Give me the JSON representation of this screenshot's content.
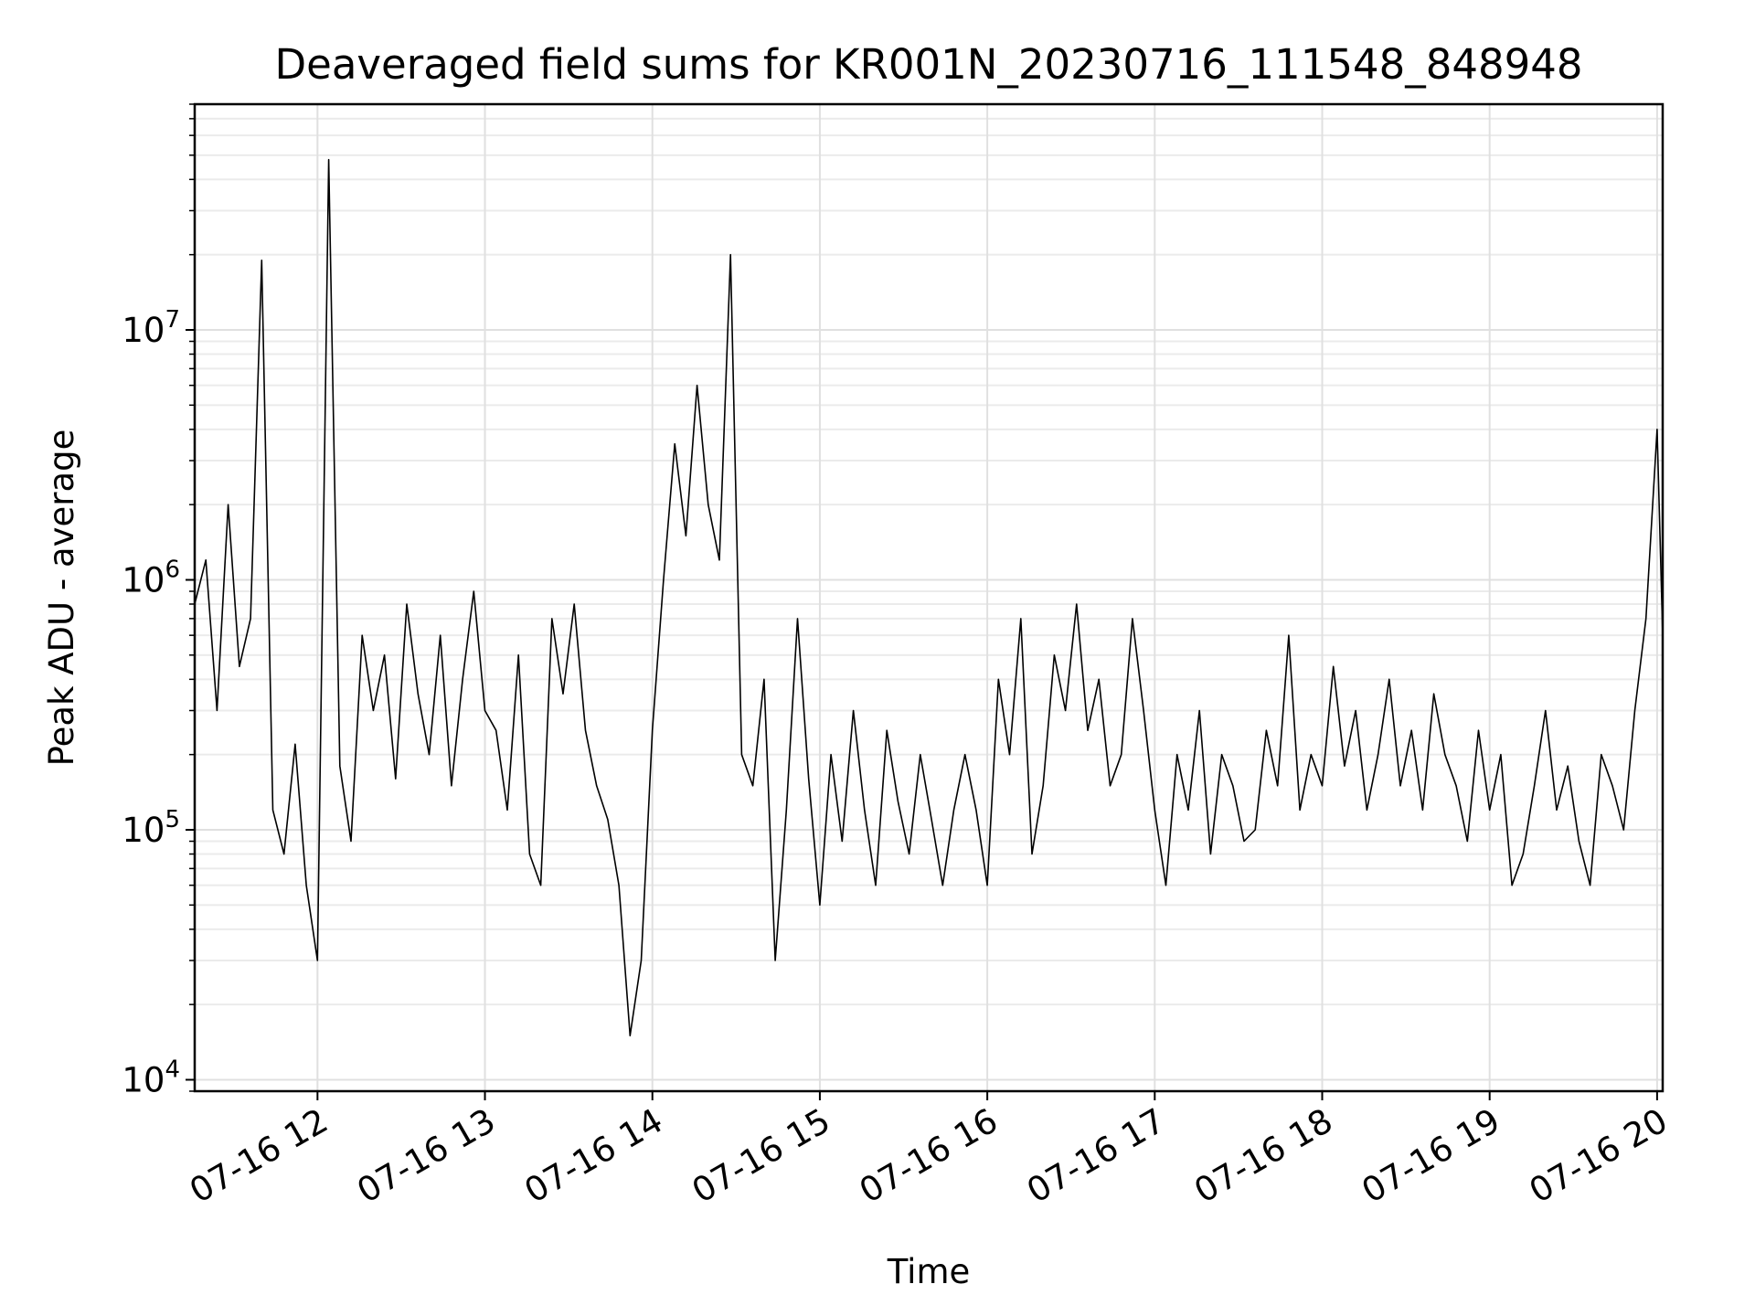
{
  "chart_data": {
    "type": "line",
    "title": "Deaveraged field sums for KR001N_20230716_111548_848948",
    "xlabel": "Time",
    "ylabel": "Peak ADU - average",
    "yscale": "log",
    "xlim": [
      "2023-07-16 11:16",
      "2023-07-16 20:02"
    ],
    "ylim": [
      9000,
      80000000
    ],
    "grid": true,
    "x_ticks": [
      "07-16 12",
      "07-16 13",
      "07-16 14",
      "07-16 15",
      "07-16 16",
      "07-16 17",
      "07-16 18",
      "07-16 19",
      "07-16 20"
    ],
    "y_ticks": [
      {
        "base": "10",
        "exp": "4",
        "value": 10000
      },
      {
        "base": "10",
        "exp": "5",
        "value": 100000
      },
      {
        "base": "10",
        "exp": "6",
        "value": 1000000
      },
      {
        "base": "10",
        "exp": "7",
        "value": 10000000
      }
    ],
    "series": [
      {
        "color": "#000000",
        "x": [
          "2023-07-16 11:16",
          "2023-07-16 11:20",
          "2023-07-16 11:24",
          "2023-07-16 11:28",
          "2023-07-16 11:32",
          "2023-07-16 11:36",
          "2023-07-16 11:40",
          "2023-07-16 11:44",
          "2023-07-16 11:48",
          "2023-07-16 11:52",
          "2023-07-16 11:56",
          "2023-07-16 12:00",
          "2023-07-16 12:04",
          "2023-07-16 12:08",
          "2023-07-16 12:12",
          "2023-07-16 12:16",
          "2023-07-16 12:20",
          "2023-07-16 12:24",
          "2023-07-16 12:28",
          "2023-07-16 12:32",
          "2023-07-16 12:36",
          "2023-07-16 12:40",
          "2023-07-16 12:44",
          "2023-07-16 12:48",
          "2023-07-16 12:52",
          "2023-07-16 12:56",
          "2023-07-16 13:00",
          "2023-07-16 13:04",
          "2023-07-16 13:08",
          "2023-07-16 13:12",
          "2023-07-16 13:16",
          "2023-07-16 13:20",
          "2023-07-16 13:24",
          "2023-07-16 13:28",
          "2023-07-16 13:32",
          "2023-07-16 13:36",
          "2023-07-16 13:40",
          "2023-07-16 13:44",
          "2023-07-16 13:48",
          "2023-07-16 13:52",
          "2023-07-16 13:56",
          "2023-07-16 14:00",
          "2023-07-16 14:04",
          "2023-07-16 14:08",
          "2023-07-16 14:12",
          "2023-07-16 14:16",
          "2023-07-16 14:20",
          "2023-07-16 14:24",
          "2023-07-16 14:28",
          "2023-07-16 14:32",
          "2023-07-16 14:36",
          "2023-07-16 14:40",
          "2023-07-16 14:44",
          "2023-07-16 14:48",
          "2023-07-16 14:52",
          "2023-07-16 14:56",
          "2023-07-16 15:00",
          "2023-07-16 15:04",
          "2023-07-16 15:08",
          "2023-07-16 15:12",
          "2023-07-16 15:16",
          "2023-07-16 15:20",
          "2023-07-16 15:24",
          "2023-07-16 15:28",
          "2023-07-16 15:32",
          "2023-07-16 15:36",
          "2023-07-16 15:40",
          "2023-07-16 15:44",
          "2023-07-16 15:48",
          "2023-07-16 15:52",
          "2023-07-16 15:56",
          "2023-07-16 16:00",
          "2023-07-16 16:04",
          "2023-07-16 16:08",
          "2023-07-16 16:12",
          "2023-07-16 16:16",
          "2023-07-16 16:20",
          "2023-07-16 16:24",
          "2023-07-16 16:28",
          "2023-07-16 16:32",
          "2023-07-16 16:36",
          "2023-07-16 16:40",
          "2023-07-16 16:44",
          "2023-07-16 16:48",
          "2023-07-16 16:52",
          "2023-07-16 16:56",
          "2023-07-16 17:00",
          "2023-07-16 17:04",
          "2023-07-16 17:08",
          "2023-07-16 17:12",
          "2023-07-16 17:16",
          "2023-07-16 17:20",
          "2023-07-16 17:24",
          "2023-07-16 17:28",
          "2023-07-16 17:32",
          "2023-07-16 17:36",
          "2023-07-16 17:40",
          "2023-07-16 17:44",
          "2023-07-16 17:48",
          "2023-07-16 17:52",
          "2023-07-16 17:56",
          "2023-07-16 18:00",
          "2023-07-16 18:04",
          "2023-07-16 18:08",
          "2023-07-16 18:12",
          "2023-07-16 18:16",
          "2023-07-16 18:20",
          "2023-07-16 18:24",
          "2023-07-16 18:28",
          "2023-07-16 18:32",
          "2023-07-16 18:36",
          "2023-07-16 18:40",
          "2023-07-16 18:44",
          "2023-07-16 18:48",
          "2023-07-16 18:52",
          "2023-07-16 18:56",
          "2023-07-16 19:00",
          "2023-07-16 19:04",
          "2023-07-16 19:08",
          "2023-07-16 19:12",
          "2023-07-16 19:16",
          "2023-07-16 19:20",
          "2023-07-16 19:24",
          "2023-07-16 19:28",
          "2023-07-16 19:32",
          "2023-07-16 19:36",
          "2023-07-16 19:40",
          "2023-07-16 19:44",
          "2023-07-16 19:48",
          "2023-07-16 19:52",
          "2023-07-16 19:56",
          "2023-07-16 20:00",
          "2023-07-16 20:02"
        ],
        "values": [
          800000,
          1200000,
          300000,
          2000000,
          450000,
          700000,
          19000000,
          120000,
          80000,
          220000,
          60000,
          30000,
          48000000,
          180000,
          90000,
          600000,
          300000,
          500000,
          160000,
          800000,
          350000,
          200000,
          600000,
          150000,
          400000,
          900000,
          300000,
          250000,
          120000,
          500000,
          80000,
          60000,
          700000,
          350000,
          800000,
          250000,
          150000,
          110000,
          60000,
          15000,
          30000,
          250000,
          1000000,
          3500000,
          1500000,
          6000000,
          2000000,
          1200000,
          20000000,
          200000,
          150000,
          400000,
          30000,
          120000,
          700000,
          160000,
          50000,
          200000,
          90000,
          300000,
          120000,
          60000,
          250000,
          130000,
          80000,
          200000,
          110000,
          60000,
          120000,
          200000,
          120000,
          60000,
          400000,
          200000,
          700000,
          80000,
          150000,
          500000,
          300000,
          800000,
          250000,
          400000,
          150000,
          200000,
          700000,
          300000,
          120000,
          60000,
          200000,
          120000,
          300000,
          80000,
          200000,
          150000,
          90000,
          100000,
          250000,
          150000,
          600000,
          120000,
          200000,
          150000,
          450000,
          180000,
          300000,
          120000,
          200000,
          400000,
          150000,
          250000,
          120000,
          350000,
          200000,
          150000,
          90000,
          250000,
          120000,
          200000,
          60000,
          80000,
          150000,
          300000,
          120000,
          180000,
          90000,
          60000,
          200000,
          150000,
          100000,
          300000,
          700000,
          4000000,
          600000
        ]
      }
    ]
  }
}
